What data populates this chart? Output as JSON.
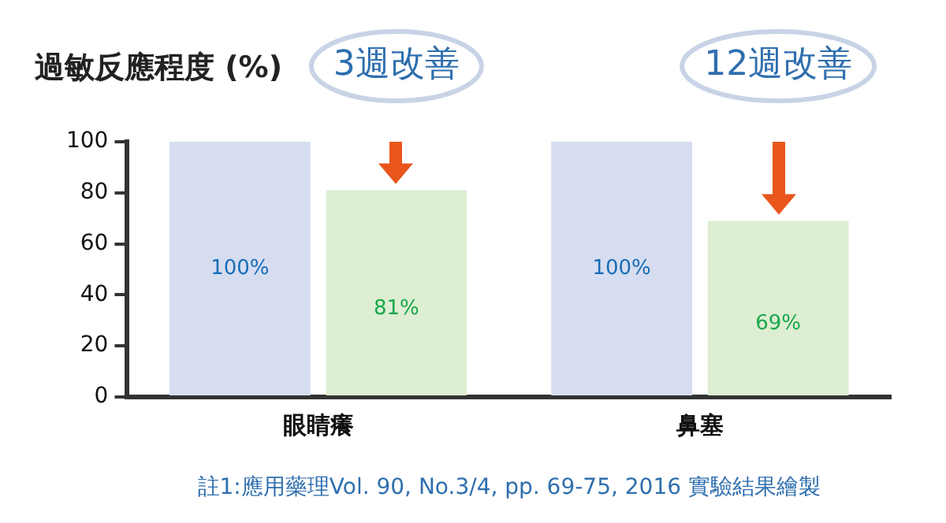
{
  "chart_data": {
    "type": "bar",
    "ylabel": "過敏反應程度 (%)",
    "categories": [
      "眼睛癢",
      "鼻塞"
    ],
    "series": [
      {
        "color": "#d6ddf0",
        "values": [
          100,
          100
        ],
        "value_labels": [
          "100%",
          "100%"
        ]
      },
      {
        "color": "#ddeed2",
        "values": [
          81,
          69
        ],
        "value_labels": [
          "81%",
          "69%"
        ]
      }
    ],
    "ylim": [
      0,
      100
    ],
    "yticks": [
      0,
      20,
      40,
      60,
      80,
      100
    ],
    "grid": false,
    "legend": false,
    "annotations": [
      "3週改善",
      "12週改善",
      "註1:應用藥理Vol. 90, No.3/4, pp. 69-75, 2016 實驗結果繪製"
    ]
  }
}
